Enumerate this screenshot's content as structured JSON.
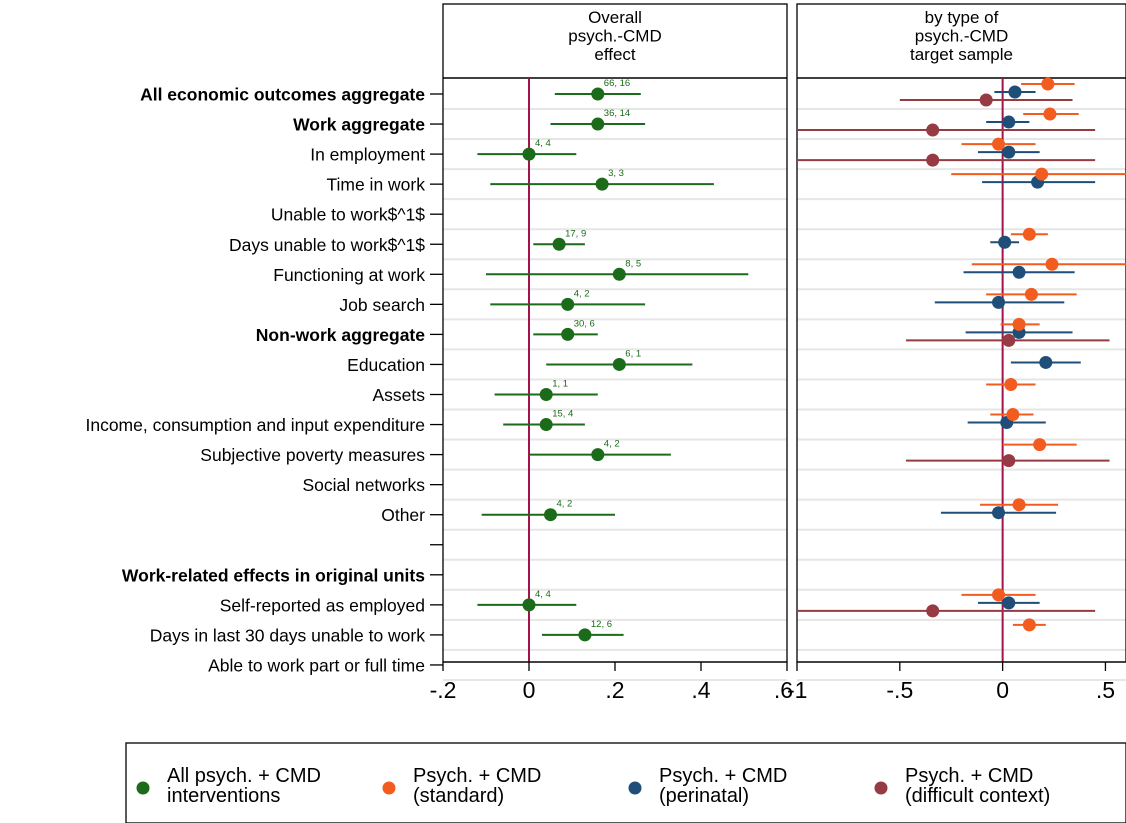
{
  "panels": [
    {
      "title": [
        "Overall",
        "psych.-CMD",
        "effect"
      ]
    },
    {
      "title": [
        "by type of",
        "psych.-CMD",
        "target sample"
      ]
    }
  ],
  "colors": {
    "all": "#1b6b1b",
    "standard": "#f25c1e",
    "perinatal": "#1f4e79",
    "difficult": "#963b43",
    "refline": "#a3124a",
    "band": "#e6e6e6"
  },
  "legend": [
    {
      "key": "all",
      "lines": [
        "All psych. + CMD",
        "interventions"
      ]
    },
    {
      "key": "standard",
      "lines": [
        "Psych. + CMD",
        "(standard)"
      ]
    },
    {
      "key": "perinatal",
      "lines": [
        "Psych. + CMD",
        "(perinatal)"
      ]
    },
    {
      "key": "difficult",
      "lines": [
        "Psych. + CMD",
        "(difficult context)"
      ]
    }
  ],
  "chart_data": {
    "type": "forest",
    "rows": [
      {
        "label": "All economic outcomes aggregate",
        "bold": true
      },
      {
        "label": "Work aggregate",
        "bold": true
      },
      {
        "label": "In employment",
        "bold": false
      },
      {
        "label": "Time in work",
        "bold": false
      },
      {
        "label": "Unable to work$^1$",
        "bold": false
      },
      {
        "label": "Days unable to work$^1$",
        "bold": false
      },
      {
        "label": "Functioning at work",
        "bold": false
      },
      {
        "label": "Job search",
        "bold": false
      },
      {
        "label": "Non-work aggregate",
        "bold": true
      },
      {
        "label": "Education",
        "bold": false
      },
      {
        "label": "Assets",
        "bold": false
      },
      {
        "label": "Income, consumption and input expenditure",
        "bold": false
      },
      {
        "label": "Subjective poverty measures",
        "bold": false
      },
      {
        "label": "Social networks",
        "bold": false
      },
      {
        "label": "Other",
        "bold": false
      },
      {
        "label": "",
        "bold": false
      },
      {
        "label": "Work-related effects in original units",
        "bold": true
      },
      {
        "label": "Self-reported as employed",
        "bold": false
      },
      {
        "label": "Days in last 30 days unable to work",
        "bold": false
      },
      {
        "label": "Able to work part or full time",
        "bold": false
      }
    ],
    "left_panel": {
      "xlim": [
        -0.2,
        0.6
      ],
      "ticks": [
        -0.2,
        0,
        0.2,
        0.4,
        0.6
      ],
      "tick_labels": [
        "-.2",
        "0",
        ".2",
        ".4",
        ".6"
      ],
      "estimates": [
        {
          "row": 0,
          "est": 0.16,
          "lo": 0.06,
          "hi": 0.26,
          "n": "66, 16"
        },
        {
          "row": 1,
          "est": 0.16,
          "lo": 0.05,
          "hi": 0.27,
          "n": "36, 14"
        },
        {
          "row": 2,
          "est": 0.0,
          "lo": -0.12,
          "hi": 0.11,
          "n": "4, 4"
        },
        {
          "row": 3,
          "est": 0.17,
          "lo": -0.09,
          "hi": 0.43,
          "n": "3, 3"
        },
        {
          "row": 5,
          "est": 0.07,
          "lo": 0.01,
          "hi": 0.13,
          "n": "17, 9"
        },
        {
          "row": 6,
          "est": 0.21,
          "lo": -0.1,
          "hi": 0.51,
          "n": "8, 5"
        },
        {
          "row": 7,
          "est": 0.09,
          "lo": -0.09,
          "hi": 0.27,
          "n": "4, 2"
        },
        {
          "row": 8,
          "est": 0.09,
          "lo": 0.01,
          "hi": 0.16,
          "n": "30, 6"
        },
        {
          "row": 9,
          "est": 0.21,
          "lo": 0.04,
          "hi": 0.38,
          "n": "6, 1"
        },
        {
          "row": 10,
          "est": 0.04,
          "lo": -0.08,
          "hi": 0.16,
          "n": "1, 1"
        },
        {
          "row": 11,
          "est": 0.04,
          "lo": -0.06,
          "hi": 0.13,
          "n": "15, 4"
        },
        {
          "row": 12,
          "est": 0.16,
          "lo": 0.0,
          "hi": 0.33,
          "n": "4, 2"
        },
        {
          "row": 14,
          "est": 0.05,
          "lo": -0.11,
          "hi": 0.2,
          "n": "4, 2"
        },
        {
          "row": 17,
          "est": 0.0,
          "lo": -0.12,
          "hi": 0.11,
          "n": "4, 4"
        },
        {
          "row": 18,
          "est": 0.13,
          "lo": 0.03,
          "hi": 0.22,
          "n": "12, 6"
        }
      ]
    },
    "right_panel": {
      "xlim": [
        -1.0,
        0.6
      ],
      "ticks": [
        -1,
        -0.5,
        0,
        0.5
      ],
      "tick_labels": [
        "-1",
        "-.5",
        "0",
        ".5"
      ],
      "estimates": [
        {
          "row": 0,
          "group": "standard",
          "est": 0.22,
          "lo": 0.09,
          "hi": 0.35
        },
        {
          "row": 0,
          "group": "perinatal",
          "est": 0.06,
          "lo": -0.04,
          "hi": 0.16
        },
        {
          "row": 0,
          "group": "difficult",
          "est": -0.08,
          "lo": -0.5,
          "hi": 0.34
        },
        {
          "row": 1,
          "group": "standard",
          "est": 0.23,
          "lo": 0.1,
          "hi": 0.37
        },
        {
          "row": 1,
          "group": "perinatal",
          "est": 0.03,
          "lo": -0.08,
          "hi": 0.13
        },
        {
          "row": 1,
          "group": "difficult",
          "est": -0.34,
          "lo": -1.0,
          "hi": 0.45
        },
        {
          "row": 2,
          "group": "standard",
          "est": -0.02,
          "lo": -0.2,
          "hi": 0.16
        },
        {
          "row": 2,
          "group": "perinatal",
          "est": 0.03,
          "lo": -0.12,
          "hi": 0.18
        },
        {
          "row": 2,
          "group": "difficult",
          "est": -0.34,
          "lo": -1.0,
          "hi": 0.45
        },
        {
          "row": 3,
          "group": "standard",
          "est": 0.19,
          "lo": -0.25,
          "hi": 0.62
        },
        {
          "row": 3,
          "group": "perinatal",
          "est": 0.17,
          "lo": -0.1,
          "hi": 0.45
        },
        {
          "row": 5,
          "group": "standard",
          "est": 0.13,
          "lo": 0.04,
          "hi": 0.22
        },
        {
          "row": 5,
          "group": "perinatal",
          "est": 0.01,
          "lo": -0.06,
          "hi": 0.08
        },
        {
          "row": 6,
          "group": "standard",
          "est": 0.24,
          "lo": -0.15,
          "hi": 0.62
        },
        {
          "row": 6,
          "group": "perinatal",
          "est": 0.08,
          "lo": -0.19,
          "hi": 0.35
        },
        {
          "row": 7,
          "group": "standard",
          "est": 0.14,
          "lo": -0.08,
          "hi": 0.36
        },
        {
          "row": 7,
          "group": "perinatal",
          "est": -0.02,
          "lo": -0.33,
          "hi": 0.3
        },
        {
          "row": 8,
          "group": "standard",
          "est": 0.08,
          "lo": -0.01,
          "hi": 0.18
        },
        {
          "row": 8,
          "group": "perinatal",
          "est": 0.08,
          "lo": -0.18,
          "hi": 0.34
        },
        {
          "row": 8,
          "group": "difficult",
          "est": 0.03,
          "lo": -0.47,
          "hi": 0.52
        },
        {
          "row": 9,
          "group": "perinatal",
          "est": 0.21,
          "lo": 0.04,
          "hi": 0.38
        },
        {
          "row": 10,
          "group": "standard",
          "est": 0.04,
          "lo": -0.08,
          "hi": 0.16
        },
        {
          "row": 11,
          "group": "standard",
          "est": 0.05,
          "lo": -0.06,
          "hi": 0.15
        },
        {
          "row": 11,
          "group": "perinatal",
          "est": 0.02,
          "lo": -0.17,
          "hi": 0.21
        },
        {
          "row": 12,
          "group": "standard",
          "est": 0.18,
          "lo": 0.0,
          "hi": 0.36
        },
        {
          "row": 12,
          "group": "difficult",
          "est": 0.03,
          "lo": -0.47,
          "hi": 0.52
        },
        {
          "row": 14,
          "group": "standard",
          "est": 0.08,
          "lo": -0.11,
          "hi": 0.27
        },
        {
          "row": 14,
          "group": "perinatal",
          "est": -0.02,
          "lo": -0.3,
          "hi": 0.26
        },
        {
          "row": 17,
          "group": "standard",
          "est": -0.02,
          "lo": -0.2,
          "hi": 0.16
        },
        {
          "row": 17,
          "group": "perinatal",
          "est": 0.03,
          "lo": -0.12,
          "hi": 0.18
        },
        {
          "row": 17,
          "group": "difficult",
          "est": -0.34,
          "lo": -1.0,
          "hi": 0.45
        },
        {
          "row": 18,
          "group": "standard",
          "est": 0.13,
          "lo": 0.05,
          "hi": 0.21
        }
      ]
    }
  }
}
